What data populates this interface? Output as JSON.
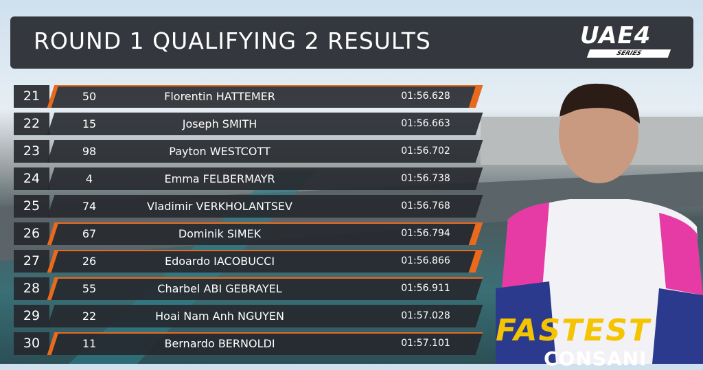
{
  "header": {
    "title": "ROUND 1 QUALIFYING 2 RESULTS",
    "logo": "UAE4",
    "logo_sub": "SERIES"
  },
  "table": {
    "rows": [
      [
        21,
        50,
        "Florentin HATTEMER",
        "01:56.628"
      ],
      [
        22,
        15,
        "Joseph SMITH",
        "01:56.663"
      ],
      [
        23,
        98,
        "Payton WESTCOTT",
        "01:56.702"
      ],
      [
        24,
        4,
        "Emma FELBERMAYR",
        "01:56.738"
      ],
      [
        25,
        74,
        "Vladimir VERKHOLANTSEV",
        "01:56.768"
      ],
      [
        26,
        67,
        "Dominik SIMEK",
        "01:56.794"
      ],
      [
        27,
        26,
        "Edoardo IACOBUCCI",
        "01:56.866"
      ],
      [
        28,
        55,
        "Charbel ABI GEBRAYEL",
        "01:56.911"
      ],
      [
        29,
        22,
        "Hoai Nam Anh NGUYEN",
        "01:57.028"
      ],
      [
        30,
        11,
        "Bernardo BERNOLDI",
        "01:57.101"
      ]
    ]
  },
  "banner": {
    "label": "FASTEST",
    "name": "CONSANI"
  }
}
